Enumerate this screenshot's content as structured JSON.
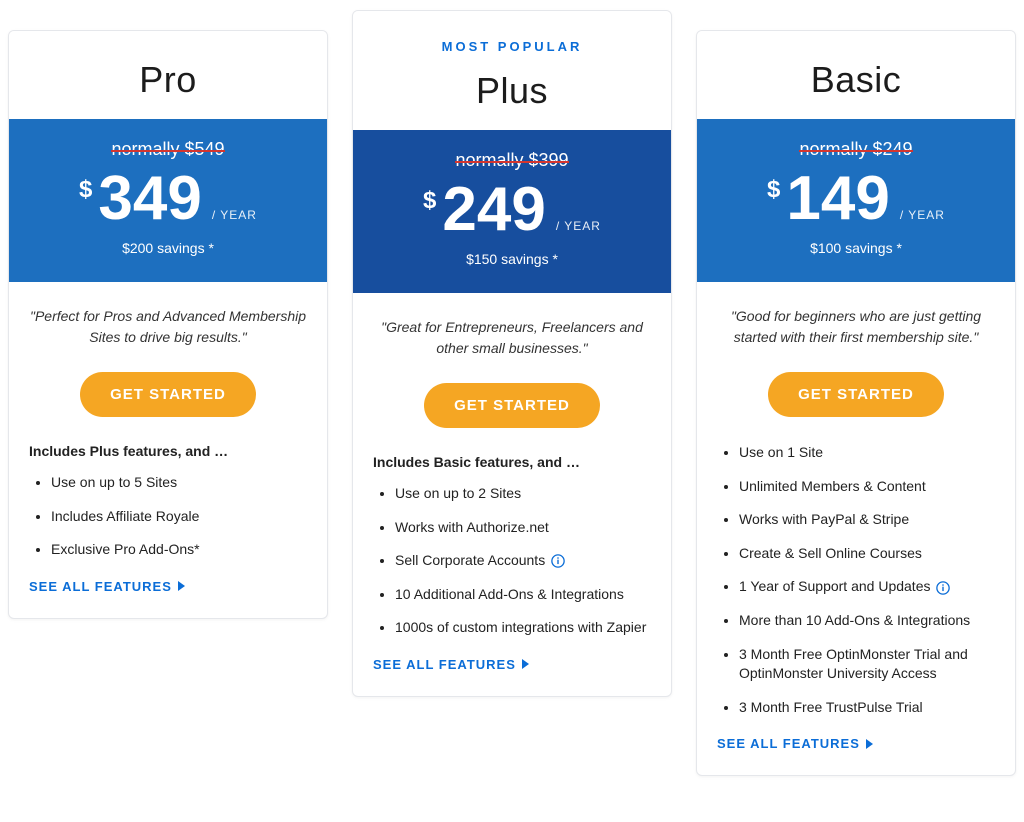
{
  "colors": {
    "price_bg_normal": "#1d6fbf",
    "price_bg_featured": "#174e9e",
    "strike_color": "#d4362f",
    "cta_bg": "#f5a623",
    "link_color": "#0b6dd7"
  },
  "common": {
    "cta_label": "GET STARTED",
    "see_all_label": "SEE ALL FEATURES",
    "currency_symbol": "$",
    "period_label": "/ YEAR"
  },
  "plans": [
    {
      "id": "pro",
      "badge": "",
      "name": "Pro",
      "normally": "normally $549",
      "amount": "349",
      "savings": "$200 savings *",
      "tagline": "\"Perfect for Pros and Advanced Membership Sites to drive big results.\"",
      "includes_heading": "Includes Plus features, and …",
      "features": [
        {
          "text": "Use on up to 5 Sites",
          "info": false
        },
        {
          "text": "Includes Affiliate Royale",
          "info": false
        },
        {
          "text": "Exclusive Pro Add-Ons*",
          "info": false
        }
      ],
      "featured": false
    },
    {
      "id": "plus",
      "badge": "MOST POPULAR",
      "name": "Plus",
      "normally": "normally $399",
      "amount": "249",
      "savings": "$150 savings *",
      "tagline": "\"Great for Entrepreneurs, Freelancers and other small businesses.\"",
      "includes_heading": "Includes Basic features, and …",
      "features": [
        {
          "text": "Use on up to 2 Sites",
          "info": false
        },
        {
          "text": "Works with Authorize.net",
          "info": false
        },
        {
          "text": "Sell Corporate Accounts",
          "info": true
        },
        {
          "text": "10 Additional Add-Ons & Integrations",
          "info": false
        },
        {
          "text": "1000s of custom integrations with Zapier",
          "info": false
        }
      ],
      "featured": true
    },
    {
      "id": "basic",
      "badge": "",
      "name": "Basic",
      "normally": "normally $249",
      "amount": "149",
      "savings": "$100 savings *",
      "tagline": "\"Good for beginners who are just getting started with their first membership site.\"",
      "includes_heading": "",
      "features": [
        {
          "text": "Use on 1 Site",
          "info": false
        },
        {
          "text": "Unlimited Members & Content",
          "info": false
        },
        {
          "text": "Works with PayPal & Stripe",
          "info": false
        },
        {
          "text": "Create & Sell Online Courses",
          "info": false
        },
        {
          "text": "1 Year of Support and Updates",
          "info": true
        },
        {
          "text": "More than 10 Add-Ons & Integrations",
          "info": false
        },
        {
          "text": "3 Month Free OptinMonster Trial and OptinMonster University Access",
          "info": false
        },
        {
          "text": "3 Month Free TrustPulse Trial",
          "info": false
        }
      ],
      "featured": false
    }
  ]
}
